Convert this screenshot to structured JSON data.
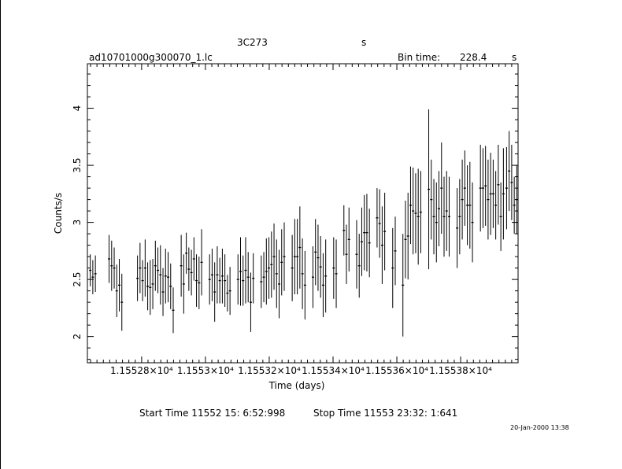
{
  "header": {
    "object": "3C273",
    "object_unit": "s",
    "filename": "ad10701000g300070_1.lc",
    "bin_time_label": "Bin time:",
    "bin_time_value": "228.4",
    "bin_time_unit": "s"
  },
  "footer": {
    "start_time": "Start Time 11552 15: 6:52:998",
    "stop_time": "Stop Time 11553 23:32: 1:641",
    "date_stamp": "20-Jan-2000 13:38"
  },
  "chart_data": {
    "type": "scatter",
    "xlabel": "Time (days)",
    "ylabel": "Counts/s",
    "xlim": [
      11552.63,
      11553.98
    ],
    "ylim": [
      1.77,
      4.39
    ],
    "x_ticks": [
      {
        "value": 11552.8,
        "label": "1.15528×10⁴"
      },
      {
        "value": 11553.0,
        "label": "1.1553×10⁴"
      },
      {
        "value": 11553.2,
        "label": "1.15532×10⁴"
      },
      {
        "value": 11553.4,
        "label": "1.15534×10⁴"
      },
      {
        "value": 11553.6,
        "label": "1.15536×10⁴"
      },
      {
        "value": 11553.8,
        "label": "1.15538×10⁴"
      }
    ],
    "y_ticks": [
      {
        "value": 2,
        "label": "2"
      },
      {
        "value": 2.5,
        "label": "2.5"
      },
      {
        "value": 3,
        "label": "3"
      },
      {
        "value": 3.5,
        "label": "3.5"
      },
      {
        "value": 4,
        "label": "4"
      }
    ],
    "grid": false,
    "legend": "none",
    "points": [
      [
        11552.639,
        2.58,
        0.14
      ],
      [
        11552.647,
        2.52,
        0.15
      ],
      [
        11552.655,
        2.55,
        0.16
      ],
      [
        11552.698,
        2.68,
        0.21
      ],
      [
        11552.706,
        2.62,
        0.22
      ],
      [
        11552.714,
        2.6,
        0.18
      ],
      [
        11552.722,
        2.4,
        0.23
      ],
      [
        11552.73,
        2.45,
        0.23
      ],
      [
        11552.738,
        2.3,
        0.25
      ],
      [
        11552.787,
        2.51,
        0.2
      ],
      [
        11552.795,
        2.6,
        0.22
      ],
      [
        11552.803,
        2.49,
        0.18
      ],
      [
        11552.811,
        2.6,
        0.25
      ],
      [
        11552.819,
        2.44,
        0.21
      ],
      [
        11552.827,
        2.43,
        0.24
      ],
      [
        11552.835,
        2.46,
        0.22
      ],
      [
        11552.843,
        2.62,
        0.22
      ],
      [
        11552.851,
        2.58,
        0.2
      ],
      [
        11552.859,
        2.54,
        0.26
      ],
      [
        11552.867,
        2.39,
        0.21
      ],
      [
        11552.875,
        2.53,
        0.24
      ],
      [
        11552.883,
        2.52,
        0.22
      ],
      [
        11552.891,
        2.44,
        0.2
      ],
      [
        11552.899,
        2.23,
        0.2
      ],
      [
        11552.924,
        2.62,
        0.27
      ],
      [
        11552.932,
        2.46,
        0.26
      ],
      [
        11552.94,
        2.73,
        0.18
      ],
      [
        11552.948,
        2.59,
        0.19
      ],
      [
        11552.956,
        2.56,
        0.2
      ],
      [
        11552.964,
        2.68,
        0.19
      ],
      [
        11552.972,
        2.49,
        0.23
      ],
      [
        11552.98,
        2.47,
        0.23
      ],
      [
        11552.988,
        2.65,
        0.29
      ],
      [
        11553.013,
        2.5,
        0.22
      ],
      [
        11553.021,
        2.54,
        0.23
      ],
      [
        11553.029,
        2.39,
        0.26
      ],
      [
        11553.037,
        2.54,
        0.25
      ],
      [
        11553.045,
        2.49,
        0.2
      ],
      [
        11553.053,
        2.53,
        0.24
      ],
      [
        11553.061,
        2.49,
        0.23
      ],
      [
        11553.069,
        2.38,
        0.16
      ],
      [
        11553.077,
        2.4,
        0.21
      ],
      [
        11553.102,
        2.5,
        0.22
      ],
      [
        11553.11,
        2.57,
        0.3
      ],
      [
        11553.118,
        2.49,
        0.22
      ],
      [
        11553.126,
        2.58,
        0.29
      ],
      [
        11553.134,
        2.52,
        0.22
      ],
      [
        11553.142,
        2.3,
        0.26
      ],
      [
        11553.15,
        2.51,
        0.22
      ],
      [
        11553.175,
        2.48,
        0.23
      ],
      [
        11553.183,
        2.52,
        0.22
      ],
      [
        11553.191,
        2.57,
        0.29
      ],
      [
        11553.199,
        2.6,
        0.27
      ],
      [
        11553.207,
        2.63,
        0.29
      ],
      [
        11553.215,
        2.7,
        0.29
      ],
      [
        11553.223,
        2.55,
        0.3
      ],
      [
        11553.231,
        2.46,
        0.3
      ],
      [
        11553.239,
        2.65,
        0.29
      ],
      [
        11553.247,
        2.7,
        0.3
      ],
      [
        11553.272,
        2.6,
        0.29
      ],
      [
        11553.28,
        2.7,
        0.33
      ],
      [
        11553.288,
        2.7,
        0.33
      ],
      [
        11553.296,
        2.78,
        0.36
      ],
      [
        11553.304,
        2.55,
        0.31
      ],
      [
        11553.312,
        2.45,
        0.3
      ],
      [
        11553.337,
        2.52,
        0.27
      ],
      [
        11553.345,
        2.74,
        0.29
      ],
      [
        11553.353,
        2.69,
        0.29
      ],
      [
        11553.361,
        2.61,
        0.27
      ],
      [
        11553.369,
        2.45,
        0.28
      ],
      [
        11553.377,
        2.53,
        0.32
      ],
      [
        11553.402,
        2.6,
        0.27
      ],
      [
        11553.41,
        2.55,
        0.3
      ],
      [
        11553.434,
        2.93,
        0.22
      ],
      [
        11553.442,
        2.72,
        0.26
      ],
      [
        11553.45,
        2.85,
        0.28
      ],
      [
        11553.474,
        2.72,
        0.3
      ],
      [
        11553.482,
        2.62,
        0.28
      ],
      [
        11553.49,
        2.83,
        0.3
      ],
      [
        11553.498,
        2.91,
        0.33
      ],
      [
        11553.506,
        2.91,
        0.34
      ],
      [
        11553.514,
        2.82,
        0.3
      ],
      [
        11553.538,
        3.04,
        0.26
      ],
      [
        11553.546,
        2.99,
        0.3
      ],
      [
        11553.554,
        2.8,
        0.34
      ],
      [
        11553.562,
        2.92,
        0.34
      ],
      [
        11553.587,
        2.6,
        0.35
      ],
      [
        11553.595,
        2.75,
        0.3
      ],
      [
        11553.619,
        2.45,
        0.45
      ],
      [
        11553.627,
        2.85,
        0.34
      ],
      [
        11553.635,
        2.88,
        0.38
      ],
      [
        11553.643,
        3.15,
        0.34
      ],
      [
        11553.651,
        3.1,
        0.38
      ],
      [
        11553.659,
        3.08,
        0.35
      ],
      [
        11553.667,
        3.05,
        0.42
      ],
      [
        11553.675,
        3.09,
        0.36
      ],
      [
        11553.7,
        3.29,
        0.7
      ],
      [
        11553.708,
        3.2,
        0.35
      ],
      [
        11553.716,
        3.05,
        0.33
      ],
      [
        11553.724,
        3.0,
        0.35
      ],
      [
        11553.732,
        3.12,
        0.33
      ],
      [
        11553.74,
        3.3,
        0.4
      ],
      [
        11553.748,
        3.05,
        0.35
      ],
      [
        11553.756,
        3.1,
        0.35
      ],
      [
        11553.764,
        3.05,
        0.35
      ],
      [
        11553.789,
        2.95,
        0.35
      ],
      [
        11553.797,
        3.05,
        0.33
      ],
      [
        11553.805,
        3.2,
        0.35
      ],
      [
        11553.813,
        3.3,
        0.33
      ],
      [
        11553.821,
        3.15,
        0.35
      ],
      [
        11553.829,
        3.15,
        0.38
      ],
      [
        11553.837,
        3.0,
        0.35
      ],
      [
        11553.862,
        3.3,
        0.38
      ],
      [
        11553.87,
        3.3,
        0.35
      ],
      [
        11553.878,
        3.32,
        0.35
      ],
      [
        11553.886,
        3.2,
        0.35
      ],
      [
        11553.894,
        3.25,
        0.36
      ],
      [
        11553.902,
        3.25,
        0.3
      ],
      [
        11553.91,
        3.15,
        0.3
      ],
      [
        11553.918,
        3.33,
        0.35
      ],
      [
        11553.926,
        3.05,
        0.3
      ],
      [
        11553.934,
        3.25,
        0.4
      ],
      [
        11553.944,
        3.3,
        0.36
      ],
      [
        11553.952,
        3.45,
        0.35
      ],
      [
        11553.96,
        3.35,
        0.33
      ],
      [
        11553.968,
        3.15,
        0.25
      ],
      [
        11553.976,
        3.2,
        0.3
      ]
    ]
  }
}
